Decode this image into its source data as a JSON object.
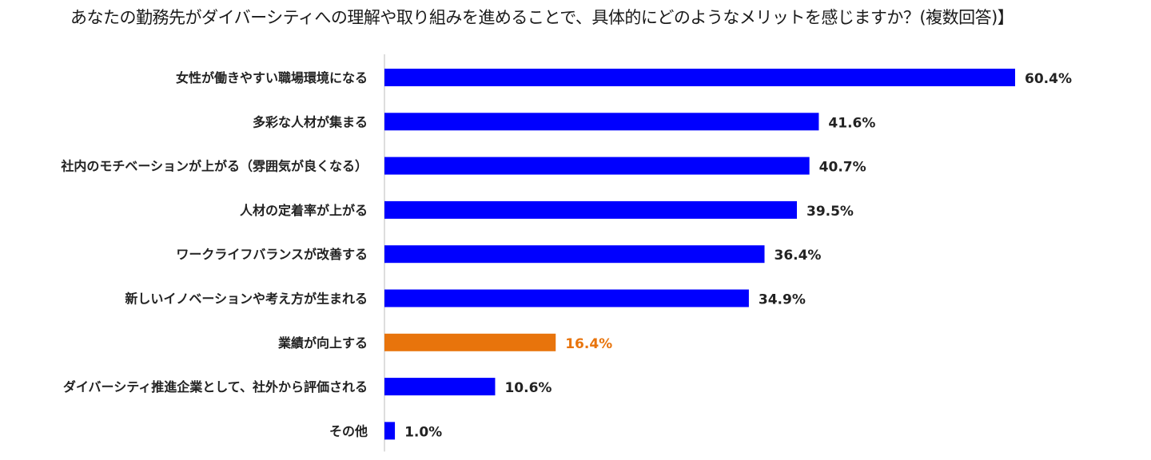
{
  "chart_data": {
    "type": "bar",
    "orientation": "horizontal",
    "title": "あなたの勤務先がダイバーシティへの理解や取り組みを進めることで、具体的にどのようなメリットを感じますか？(複数回答)】",
    "xlabel": "",
    "ylabel": "",
    "xlim": [
      0,
      60.4
    ],
    "grid": false,
    "legend": "none",
    "value_suffix": "%",
    "categories": [
      "女性が働きやすい職場環境になる",
      "多彩な人材が集まる",
      "社内のモチベーションが上がる（雰囲気が良くなる）",
      "人材の定着率が上がる",
      "ワークライフバランスが改善する",
      "新しいイノベーションや考え方が生まれる",
      "業績が向上する",
      "ダイバーシティ推進企業として、社外から評価される",
      "その他"
    ],
    "values": [
      60.4,
      41.6,
      40.7,
      39.5,
      36.4,
      34.9,
      16.4,
      10.6,
      1.0
    ],
    "value_labels": [
      "60.4%",
      "41.6%",
      "40.7%",
      "39.5%",
      "36.4%",
      "34.9%",
      "16.4%",
      "10.6%",
      "1.0%"
    ],
    "colors": {
      "default_bar": "#0000ff",
      "highlight_bar": "#e8740c",
      "highlight_label": "#e8740c",
      "default_label": "#222222",
      "axis": "#bbbbbb"
    },
    "highlight_index": 6
  }
}
